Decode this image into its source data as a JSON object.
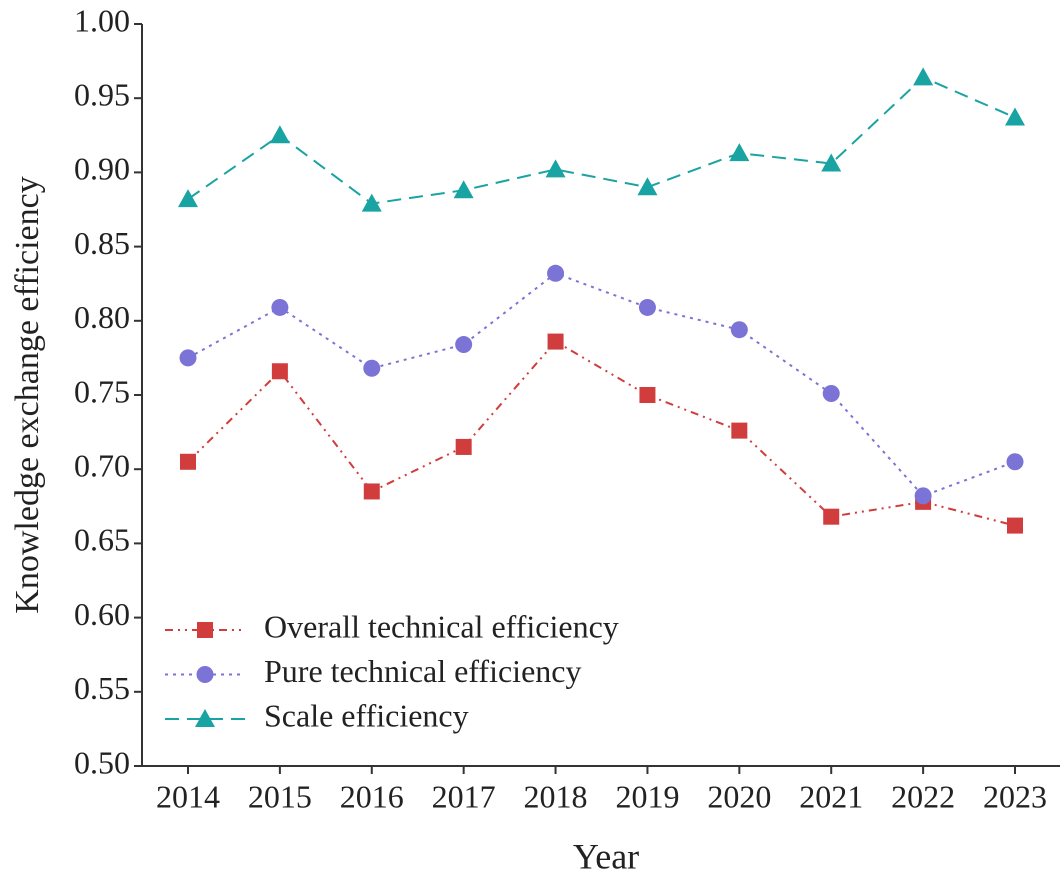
{
  "chart_data": {
    "type": "line",
    "x_label": "Year",
    "y_label": "Knowledge exchange efficiency",
    "categories": [
      "2014",
      "2015",
      "2016",
      "2017",
      "2018",
      "2019",
      "2020",
      "2021",
      "2022",
      "2023"
    ],
    "series": [
      {
        "name": "Overall technical efficiency",
        "color": "#d13c3c",
        "marker": "square",
        "dash": "dashdotdot",
        "values": [
          0.705,
          0.766,
          0.685,
          0.715,
          0.786,
          0.75,
          0.726,
          0.668,
          0.678,
          0.662
        ]
      },
      {
        "name": "Pure technical efficiency",
        "color": "#7b73d6",
        "marker": "circle",
        "dash": "dotted",
        "values": [
          0.775,
          0.809,
          0.768,
          0.784,
          0.832,
          0.809,
          0.794,
          0.751,
          0.682,
          0.705
        ]
      },
      {
        "name": "Scale efficiency",
        "color": "#1aa3a3",
        "marker": "triangle",
        "dash": "dashed",
        "values": [
          0.882,
          0.925,
          0.879,
          0.888,
          0.902,
          0.89,
          0.913,
          0.906,
          0.964,
          0.937
        ]
      }
    ],
    "ylim": [
      0.5,
      1.0
    ],
    "yticks": [
      {
        "value": 0.5,
        "label": "0.50"
      },
      {
        "value": 0.55,
        "label": "0.55"
      },
      {
        "value": 0.6,
        "label": "0.60"
      },
      {
        "value": 0.65,
        "label": "0.65"
      },
      {
        "value": 0.7,
        "label": "0.70"
      },
      {
        "value": 0.75,
        "label": "0.75"
      },
      {
        "value": 0.8,
        "label": "0.80"
      },
      {
        "value": 0.85,
        "label": "0.85"
      },
      {
        "value": 0.9,
        "label": "0.90"
      },
      {
        "value": 0.95,
        "label": "0.95"
      },
      {
        "value": 1.0,
        "label": "1.00"
      }
    ],
    "legend": "lower-left",
    "grid": false
  }
}
